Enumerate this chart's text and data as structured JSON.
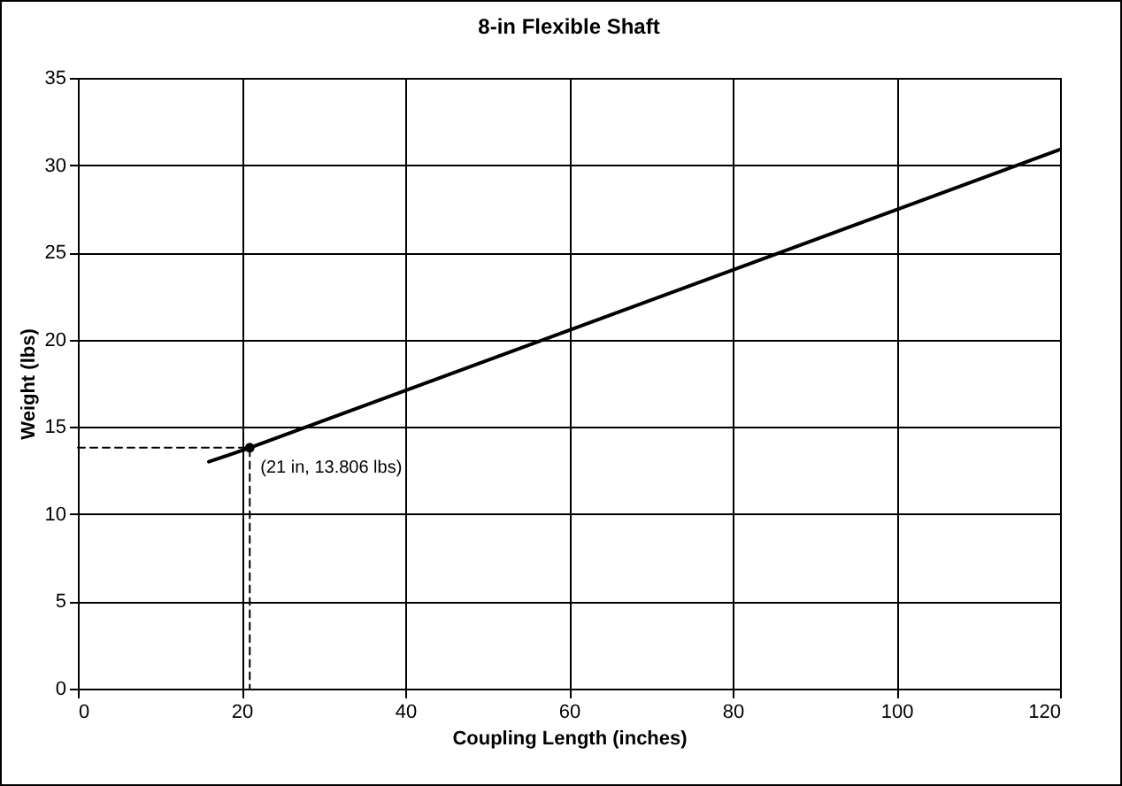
{
  "chart_data": {
    "type": "line",
    "title": "8-in Flexible Shaft",
    "xlabel": "Coupling Length (inches)",
    "ylabel": "Weight (lbs)",
    "series": [
      {
        "color": "#000000",
        "x": [
          16,
          21,
          120
        ],
        "values": [
          13.0,
          13.8,
          30.9
        ]
      },
      {
        "color": "#000000",
        "line_style": "dashed",
        "x": [
          0,
          21,
          21
        ],
        "values": [
          13.806,
          13.806,
          0
        ]
      },
      {
        "type": "scatter",
        "color": "#000000",
        "marker": "circle",
        "x": [
          21
        ],
        "values": [
          13.806
        ]
      }
    ],
    "annotations": [
      {
        "text": "(21 in, 13.806 lbs)",
        "x": 21,
        "y": 13.806
      }
    ],
    "xlim": [
      0,
      120
    ],
    "xticks": [
      0,
      20,
      40,
      60,
      80,
      100,
      120
    ],
    "ylim": [
      0,
      35
    ],
    "yticks": [
      0,
      5,
      10,
      15,
      20,
      25,
      30,
      35
    ],
    "grid": true
  }
}
